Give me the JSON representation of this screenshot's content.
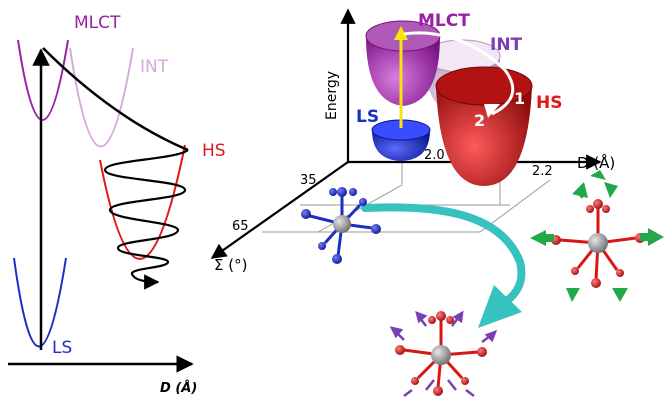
{
  "left_panel": {
    "curve_labels": {
      "mlct": "MLCT",
      "int": "INT",
      "hs": "HS",
      "ls": "LS"
    },
    "x_axis_label": "D (Å)"
  },
  "right_panel": {
    "axis_labels": {
      "energy": "Energy",
      "d": "D (Å)",
      "sigma": "Σ (°)"
    },
    "d_ticks": [
      "2.0",
      "2.2"
    ],
    "sigma_ticks": [
      "35",
      "65"
    ],
    "surface_labels": {
      "mlct": "MLCT",
      "int": "INT",
      "hs": "HS",
      "ls": "LS"
    },
    "step_labels": [
      "1",
      "2"
    ]
  },
  "colors": {
    "mlct": "#9c1fa6",
    "int": "#c79bd1",
    "hs": "#e01818",
    "ls": "#1a2fc4",
    "transition_arrow": "#f5e60a",
    "path_arrow": "#36c2be",
    "vibration_arrow_green": "#22a84a",
    "vibration_arrow_purple": "#7a3fb5",
    "oxygen_atom": "#d81616",
    "metal_atom": "#9e9e9e"
  }
}
